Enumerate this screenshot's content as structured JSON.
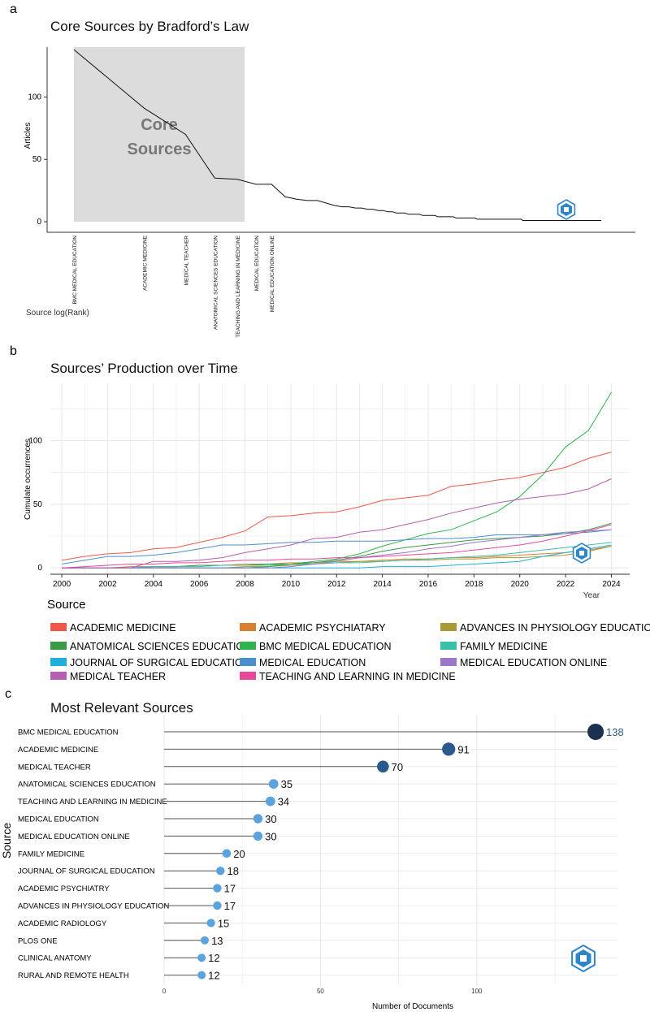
{
  "panels": {
    "a": "a",
    "b": "b",
    "c": "c"
  },
  "colors": {
    "ink": "#111111",
    "axis": "#333333",
    "core_region": "#dcdcdc",
    "core_label": "#777777",
    "grid": "#e8e8e8",
    "lollipop_dark": "#1a3150",
    "lollipop_mid": "#2a5a8c",
    "lollipop_light": "#5aa3dd",
    "value_highlight": "#2a5a8c",
    "logo": "#2e86c8"
  },
  "chart_data": [
    {
      "id": "bradford",
      "type": "line",
      "title": "Core Sources by Bradford’s Law",
      "xlabel": "Source log(Rank)",
      "ylabel": "Articles",
      "yticks": [
        0,
        50,
        100
      ],
      "ylim": [
        0,
        140
      ],
      "core_label_line1": "Core",
      "core_label_line2": "Sources",
      "core_count": 7,
      "labeled_sources": [
        "BMC MEDICAL EDUCATION",
        "ACADEMIC MEDICINE",
        "MEDICAL TEACHER",
        "ANATOMICAL SCIENCES EDUCATION",
        "TEACHING AND LEARNING IN MEDICINE",
        "MEDICAL EDUCATION",
        "MEDICAL EDUCATION ONLINE"
      ],
      "values": [
        138,
        91,
        70,
        35,
        34,
        30,
        30,
        20,
        18,
        17,
        17,
        15,
        13,
        12,
        12,
        11,
        11,
        10,
        10,
        9,
        9,
        8,
        8,
        7,
        7,
        7,
        6,
        6,
        6,
        6,
        5,
        5,
        5,
        5,
        5,
        4,
        4,
        4,
        4,
        4,
        4,
        4,
        3,
        3,
        3,
        3,
        3,
        3,
        3,
        3,
        3,
        3,
        2,
        2,
        2,
        2,
        2,
        2,
        2,
        2,
        2,
        2,
        2,
        2,
        2,
        2,
        2,
        2,
        2,
        2,
        2,
        2,
        2,
        2,
        2,
        2,
        2,
        2,
        2,
        2,
        2,
        2,
        1,
        1,
        1,
        1,
        1,
        1,
        1,
        1,
        1,
        1,
        1,
        1,
        1,
        1,
        1,
        1,
        1,
        1,
        1,
        1,
        1,
        1,
        1,
        1,
        1,
        1,
        1,
        1,
        1,
        1,
        1,
        1,
        1,
        1,
        1,
        1,
        1,
        1,
        1,
        1,
        1,
        1,
        1,
        1,
        1,
        1,
        1,
        1,
        1,
        1,
        1,
        1,
        1,
        1,
        1,
        1,
        1,
        1,
        1,
        1,
        1,
        1,
        1,
        1,
        1,
        1,
        1,
        1,
        1,
        1,
        1,
        1,
        1,
        1,
        1,
        1,
        1,
        1,
        1,
        1,
        1,
        1,
        1,
        1,
        1,
        1,
        1,
        1,
        1,
        1,
        1,
        1,
        1,
        1,
        1,
        1,
        1,
        1
      ]
    },
    {
      "id": "production",
      "type": "line",
      "title": "Sources’ Production over Time",
      "xlabel": "Year",
      "ylabel": "Cumulate occurrences",
      "xlim": [
        1999.5,
        2024.8
      ],
      "ylim": [
        -5,
        145
      ],
      "xticks": [
        2000,
        2002,
        2004,
        2006,
        2008,
        2010,
        2012,
        2014,
        2016,
        2018,
        2020,
        2022,
        2024
      ],
      "yticks": [
        0,
        50,
        100
      ],
      "legend_title": "Source",
      "years": [
        2000,
        2001,
        2002,
        2003,
        2004,
        2005,
        2006,
        2007,
        2008,
        2009,
        2010,
        2011,
        2012,
        2013,
        2014,
        2015,
        2016,
        2017,
        2018,
        2019,
        2020,
        2021,
        2022,
        2023,
        2024
      ],
      "series": [
        {
          "name": "ACADEMIC MEDICINE",
          "color": "#f0574a",
          "values": [
            6,
            9,
            11,
            12,
            15,
            16,
            20,
            24,
            29,
            40,
            41,
            43,
            44,
            48,
            53,
            55,
            57,
            64,
            66,
            69,
            71,
            75,
            79,
            86,
            91
          ]
        },
        {
          "name": "ACADEMIC PSYCHIATARY",
          "color": "#d98030",
          "values": [
            0,
            0,
            0,
            1,
            1,
            1,
            2,
            2,
            3,
            3,
            4,
            4,
            5,
            5,
            6,
            7,
            7,
            8,
            8,
            9,
            10,
            11,
            12,
            14,
            17
          ]
        },
        {
          "name": "ADVANCES IN PHYSIOLOGY EDUCATION",
          "color": "#a89a35",
          "values": [
            0,
            0,
            0,
            0,
            0,
            0,
            0,
            0,
            1,
            1,
            2,
            3,
            4,
            5,
            5,
            6,
            6,
            7,
            7,
            8,
            8,
            9,
            10,
            13,
            17
          ]
        },
        {
          "name": "ANATOMICAL SCIENCES EDUCATION",
          "color": "#3a9a45",
          "values": [
            0,
            0,
            0,
            0,
            1,
            1,
            2,
            2,
            2,
            3,
            3,
            4,
            6,
            9,
            13,
            16,
            18,
            20,
            22,
            23,
            24,
            25,
            27,
            30,
            35
          ]
        },
        {
          "name": "BMC MEDICAL EDUCATION",
          "color": "#2eb34d",
          "values": [
            0,
            0,
            0,
            0,
            0,
            0,
            0,
            0,
            0,
            1,
            3,
            5,
            7,
            11,
            17,
            22,
            27,
            30,
            37,
            44,
            56,
            73,
            95,
            108,
            138
          ]
        },
        {
          "name": "FAMILY MEDICINE",
          "color": "#3bbfad",
          "values": [
            0,
            0,
            0,
            0,
            1,
            1,
            1,
            2,
            2,
            2,
            3,
            3,
            4,
            4,
            5,
            6,
            7,
            8,
            9,
            10,
            12,
            14,
            16,
            18,
            20
          ]
        },
        {
          "name": "JOURNAL OF SURGICAL EDUCATION",
          "color": "#1eb0d8",
          "values": [
            0,
            0,
            0,
            0,
            0,
            0,
            0,
            0,
            0,
            0,
            0,
            0,
            0,
            0,
            1,
            1,
            1,
            2,
            3,
            4,
            5,
            9,
            12,
            15,
            18
          ]
        },
        {
          "name": "MEDICAL EDUCATION",
          "color": "#4a90cc",
          "values": [
            3,
            6,
            9,
            9,
            10,
            12,
            15,
            18,
            18,
            19,
            20,
            20,
            21,
            21,
            21,
            22,
            23,
            23,
            24,
            26,
            26,
            26,
            27,
            28,
            30
          ]
        },
        {
          "name": "MEDICAL EDUCATION ONLINE",
          "color": "#9b78c8",
          "values": [
            0,
            0,
            0,
            0,
            0,
            0,
            0,
            0,
            0,
            0,
            1,
            3,
            5,
            8,
            10,
            12,
            15,
            17,
            20,
            22,
            24,
            26,
            28,
            29,
            30
          ]
        },
        {
          "name": "MEDICAL TEACHER",
          "color": "#b45fb0",
          "values": [
            0,
            0,
            0,
            0,
            5,
            5,
            6,
            8,
            12,
            15,
            18,
            23,
            24,
            28,
            30,
            34,
            38,
            43,
            47,
            51,
            54,
            56,
            58,
            62,
            70
          ]
        },
        {
          "name": "TEACHING AND LEARNING IN MEDICINE",
          "color": "#e8489a",
          "values": [
            0,
            1,
            2,
            3,
            3,
            4,
            4,
            5,
            6,
            6,
            7,
            7,
            8,
            8,
            9,
            10,
            11,
            12,
            14,
            16,
            18,
            21,
            25,
            29,
            34
          ]
        }
      ],
      "legend_order": [
        [
          "ACADEMIC MEDICINE",
          "ACADEMIC PSYCHIATARY",
          "ADVANCES IN PHYSIOLOGY EDUCATION"
        ],
        [
          "ANATOMICAL SCIENCES EDUCATION",
          "BMC MEDICAL EDUCATION",
          "FAMILY MEDICINE"
        ],
        [
          "JOURNAL OF SURGICAL EDUCATION",
          "MEDICAL EDUCATION",
          "MEDICAL EDUCATION ONLINE"
        ],
        [
          "MEDICAL TEACHER",
          "TEACHING AND LEARNING IN MEDICINE"
        ]
      ]
    },
    {
      "id": "relevant",
      "type": "bar",
      "title": "Most Relevant Sources",
      "xlabel": "Number of Documents",
      "ylabel": "Source",
      "xlim": [
        0,
        145
      ],
      "xticks": [
        0,
        50,
        100
      ],
      "categories": [
        "BMC MEDICAL EDUCATION",
        "ACADEMIC MEDICINE",
        "MEDICAL TEACHER",
        "ANATOMICAL SCIENCES EDUCATION",
        "TEACHING AND LEARNING IN MEDICINE",
        "MEDICAL EDUCATION",
        "MEDICAL EDUCATION ONLINE",
        "FAMILY MEDICINE",
        "JOURNAL OF SURGICAL EDUCATION",
        "ACADEMIC PSYCHIATRY",
        "ADVANCES IN PHYSIOLOGY EDUCATION",
        "ACADEMIC RADIOLOGY",
        "PLOS ONE",
        "CLINICAL ANATOMY",
        "RURAL AND REMOTE HEALTH"
      ],
      "values": [
        138,
        91,
        70,
        35,
        34,
        30,
        30,
        20,
        18,
        17,
        17,
        15,
        13,
        12,
        12
      ]
    }
  ]
}
